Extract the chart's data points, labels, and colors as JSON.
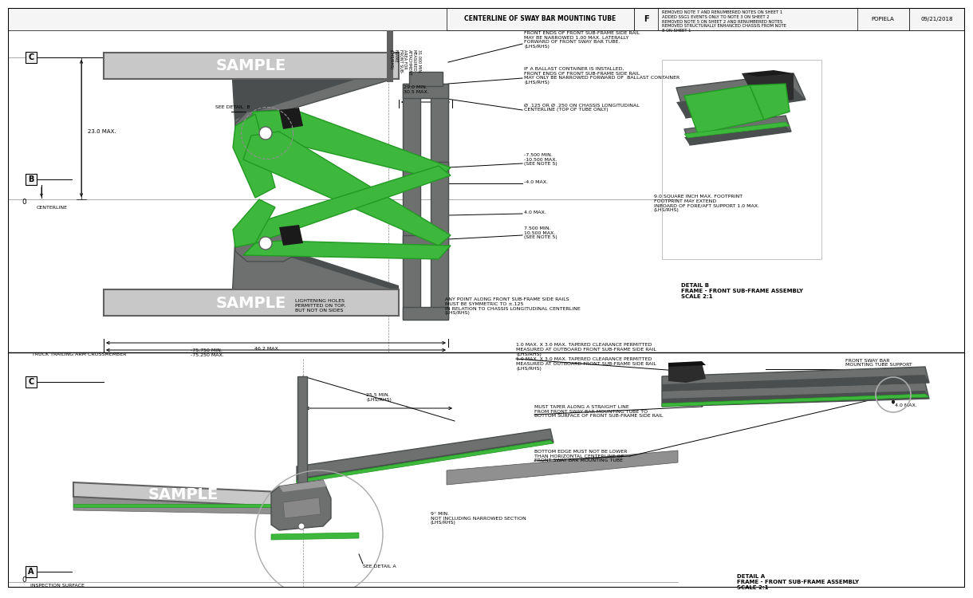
{
  "bg_color": "#ffffff",
  "light_gray": "#c8c8c8",
  "mid_gray": "#909090",
  "dark_gray": "#606060",
  "steel_gray": "#6e7070",
  "steel_dark": "#4a4e4e",
  "green": "#3db83d",
  "black_part": "#2c2c2c",
  "title_top": "CENTERLINE OF SWAY BAR MOUNTING TUBE",
  "header_right_text": "REMOVED NOTE 7 AND RENUMBERED NOTES ON SHEET 1\nADDED SSG1 EVENTS ONLY TO NOTE 3 ON SHEET 2\nREMOVED NOTE 5 ON SHEET 2 AND RENUMBERED NOTES\nREMOVED STRUCTURALLY ENHANCED CHASSIS FROM NOTE\n8 ON SHEET 1",
  "header_rev": "F",
  "header_name": "POPIELA",
  "header_date": "09/21/2018",
  "label_sample": "SAMPLE",
  "label_centerline": "CENTERLINE",
  "label_truck_trailing": "TRUCK TRAILING ARM CROSSMEMBER",
  "label_inspection": "INSPECTION SURFACE",
  "detail_b_title": "DETAIL B\nFRAME - FRONT SUB-FRAME ASSEMBLY\nSCALE 2:1",
  "detail_a_title": "DETAIL A\nFRAME - FRONT SUB-FRAME ASSEMBLY\nSCALE 2:1",
  "ann1": "FRONT ENDS OF FRONT SUB-FRAME SIDE RAIL\nMAY BE NARROWED 1.00 MAX. LATERALLY\nFORWARD OF FRONT SWAY BAR TUBE.\n(LHS/RHS)",
  "ann2": "IF A BALLAST CONTAINER IS INSTALLED,\nFRONT ENDS OF FRONT SUB-FRAME SIDE RAIL\nMAY ONLY BE NARROWED FORWARD OF  BALLAST CONTAINER\n(LHS/RHS)",
  "ann3": "Ø .125 OR Ø .250 ON CHASSIS LONGITUDINAL\nCENTERLINE (TOP OF TUBE ONLY)",
  "ann4": "-7.500 MIN.\n-10.500 MAX.\n(SEE NOTE 5)",
  "ann5": "-4.0 MAX.",
  "ann6": "4.0 MAX.",
  "ann7": "7.500 MIN.\n10.500 MAX.\n(SEE NOTE 5)",
  "ann8": "9.0 SQUARE INCH MAX. FOOTPRINT\nFOOTPRINT MAY EXTEND\nINBOARD OF FORE/AFT SUPPORT 1.0 MAX.\n(LHS/RHS)",
  "ann9": "LIGHTENING HOLES\nPERMITTED ON TOP,\nBUT NOT ON SIDES",
  "ann10": "ANY POINT ALONG FRONT SUB-FRAME SIDE RAILS\nMUST BE SYMMETRIC TO ±.125\nIN RELATION TO CHASSIS LONGITUDINAL CENTERLINE\n(LHS/RHS)",
  "ann11": "1.0 MAX. X 3.0 MAX. TAPERED CLEARANCE PERMITTED\nMEASURED AT OUTBOARD FRONT SUB-FRAME SIDE RAIL\n(LHS/RHS)",
  "ann12": "25.5 MIN.\n(LHS/RHS)",
  "ann13": "MUST TAPER ALONG A STRAIGHT LINE\nFROM FRONT SWAY BAR MOUNTING TUBE TO\nBOTTOM SURFACE OF FRONT SUB-FRAME SIDE RAIL",
  "ann14": "9° MIN.\nNOT INCLUDING NARROWED SECTION\n(LHS/RHS)",
  "ann15": "BOTTOM EDGE MUST NOT BE LOWER\nTHAN HORIZONTAL CENTERLINE OF\nFRONT SWAY BAR MOUNTING TUBE",
  "ann16": "FRONT SWAY BAR\nMOUNTING TUBE SUPPORT",
  "ann17": "4.0 MAX.",
  "ann18": "SEE DETAIL A",
  "ann19": "SEE DETAIL B",
  "ann20": "29.0 MIN.\n30.5 MAX.",
  "ann21": "23.0 MAX.",
  "ann22": "46.2 MAX.",
  "ann23": "-75.750 MIN.\n-75.250 MAX.",
  "dim_rotate_text": "31.000 MIN.\nMEASURED\nATTACHMENT\nAREA FOR\nFRONT SUB-\nFRAME\n(LHS/RHS)"
}
